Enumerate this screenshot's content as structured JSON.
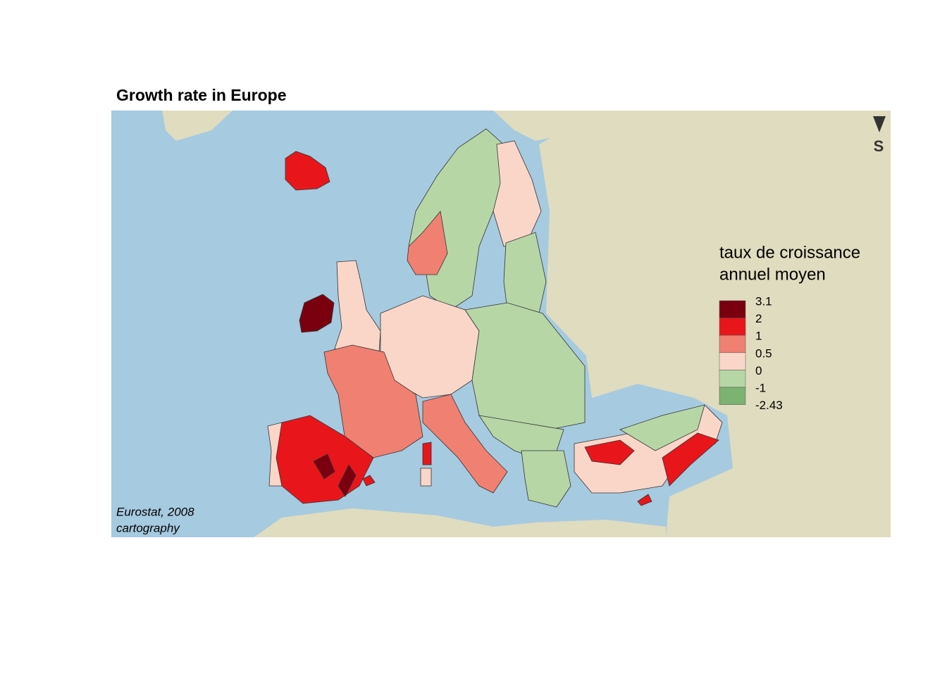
{
  "map": {
    "title": "Growth rate in Europe",
    "legend": {
      "title_lines": [
        "taux de croissance",
        "annuel moyen"
      ],
      "breaks": [
        3.1,
        2,
        1,
        0.5,
        0,
        -1,
        -2.43
      ],
      "colors": [
        "#7a0010",
        "#e8161b",
        "#f08072",
        "#fad6c9",
        "#b6d6a6",
        "#7cb272"
      ]
    },
    "north_label": "S",
    "source_lines": [
      "Eurostat, 2008",
      "cartography"
    ]
  }
}
